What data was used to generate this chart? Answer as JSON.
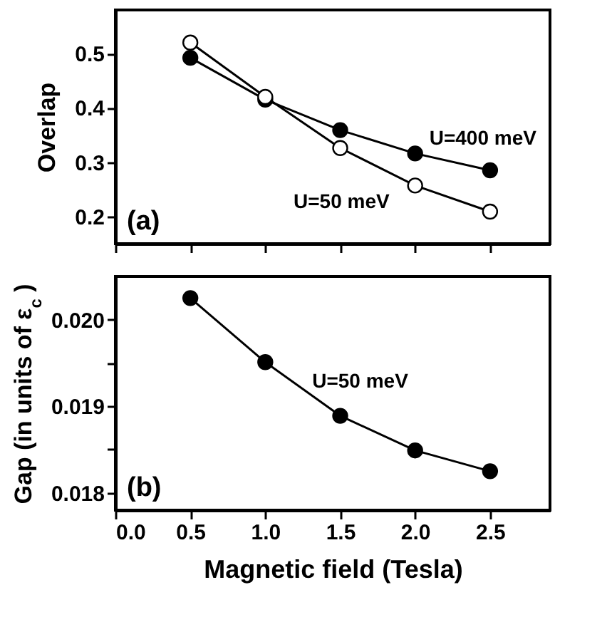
{
  "chart_data": [
    {
      "type": "line",
      "ylabel": "Overlap",
      "x": [
        0.5,
        1.0,
        1.5,
        2.0,
        2.5
      ],
      "series": [
        {
          "name": "U=400 meV",
          "color": "#000000",
          "values": [
            0.492,
            0.415,
            0.359,
            0.316,
            0.285
          ]
        },
        {
          "name": "U=50 meV",
          "color": "#ffffff",
          "values": [
            0.52,
            0.42,
            0.326,
            0.257,
            0.209
          ]
        }
      ],
      "xlim": [
        0,
        2.9
      ],
      "xticks": [
        0.0,
        0.5,
        1.0,
        1.5,
        2.0,
        2.5
      ],
      "ylim": [
        0.15,
        0.58
      ],
      "yticks": [
        0.2,
        0.3,
        0.4,
        0.5
      ],
      "tick_labels": "y",
      "marker": "circle",
      "grid": false,
      "legend": false,
      "annotations": [
        "(a)"
      ]
    },
    {
      "type": "line",
      "xlabel": "Magnetic field (Tesla)",
      "ylabel": "Gap  (in units of ε$_{c}$ )",
      "x": [
        0.5,
        1.0,
        1.5,
        2.0,
        2.5
      ],
      "series": [
        {
          "name": "U=50 meV",
          "color": "#000000",
          "values": [
            0.02025,
            0.01951,
            0.01889,
            0.01849,
            0.01825
          ]
        }
      ],
      "xlim": [
        0,
        2.9
      ],
      "xticks": [
        {
          "value": 0.0,
          "label": "0.0"
        },
        {
          "value": 0.5,
          "label": "0.5"
        },
        {
          "value": 1.0,
          "label": "1.0"
        },
        {
          "value": 1.5,
          "label": "1.5"
        },
        {
          "value": 2.0,
          "label": "2.0"
        },
        {
          "value": 2.5,
          "label": "2.5"
        }
      ],
      "ylim": [
        0.0178,
        0.0205
      ],
      "yticks": [
        {
          "value": 0.018,
          "label": "0.018"
        },
        {
          "value": 0.0185,
          "label": null
        },
        {
          "value": 0.019,
          "label": "0.019"
        },
        {
          "value": 0.0195,
          "label": null
        },
        {
          "value": 0.02,
          "label": "0.020"
        }
      ],
      "marker": "circle",
      "grid": false,
      "legend": false,
      "annotations": [
        "(b)"
      ]
    }
  ]
}
